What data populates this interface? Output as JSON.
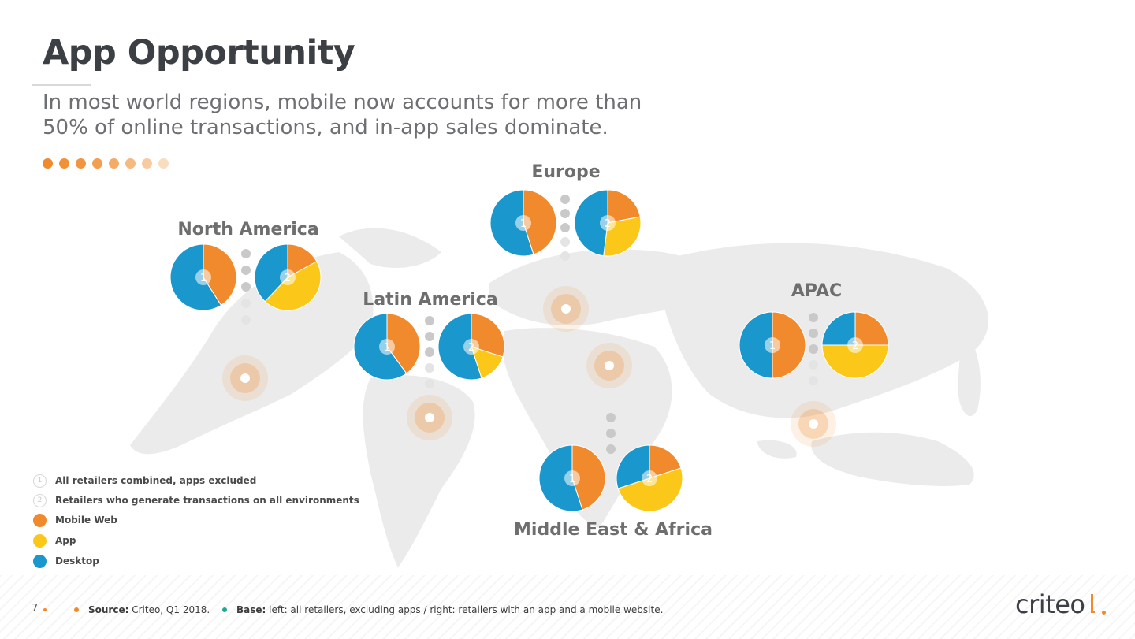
{
  "slide": {
    "title": "App Opportunity",
    "subtitle_line1": "In most world regions, mobile now accounts for more than",
    "subtitle_line2": "50% of online transactions, and in-app sales dominate."
  },
  "colors": {
    "mobile_web": "#f08a2c",
    "app": "#fbc81a",
    "desktop": "#1a97cc",
    "accent": "#f08a2c"
  },
  "chart_data": {
    "type": "pie",
    "pie_labels": [
      "1",
      "2"
    ],
    "legend": [
      {
        "marker": "1",
        "label": "All retailers combined, apps excluded"
      },
      {
        "marker": "2",
        "label": "Retailers who generate transactions on all environments"
      },
      {
        "marker": "mobile_web",
        "label": "Mobile Web"
      },
      {
        "marker": "app",
        "label": "App"
      },
      {
        "marker": "desktop",
        "label": "Desktop"
      }
    ],
    "categories": [
      "Mobile Web",
      "App",
      "Desktop"
    ],
    "regions": [
      {
        "name": "North America",
        "chart1": {
          "mobile_web": 41,
          "desktop": 59
        },
        "chart2": {
          "mobile_web": 17,
          "app": 45,
          "desktop": 38
        }
      },
      {
        "name": "Europe",
        "chart1": {
          "mobile_web": 45,
          "desktop": 55
        },
        "chart2": {
          "mobile_web": 22,
          "app": 30,
          "desktop": 48
        }
      },
      {
        "name": "Latin America",
        "chart1": {
          "mobile_web": 40,
          "desktop": 60
        },
        "chart2": {
          "mobile_web": 30,
          "app": 15,
          "desktop": 55
        }
      },
      {
        "name": "APAC",
        "chart1": {
          "mobile_web": 50,
          "desktop": 50
        },
        "chart2": {
          "mobile_web": 25,
          "app": 50,
          "desktop": 25
        }
      },
      {
        "name": "Middle East & Africa",
        "chart1": {
          "mobile_web": 45,
          "desktop": 55
        },
        "chart2": {
          "mobile_web": 20,
          "app": 50,
          "desktop": 30
        }
      }
    ]
  },
  "footer": {
    "page_number": "7",
    "source_label": "Source:",
    "source_text": " Criteo, Q1 2018.",
    "base_label": "Base:",
    "base_text": " left: all retailers, excluding apps / right: retailers with an app and a mobile website."
  },
  "brand": {
    "name": "criteo"
  }
}
